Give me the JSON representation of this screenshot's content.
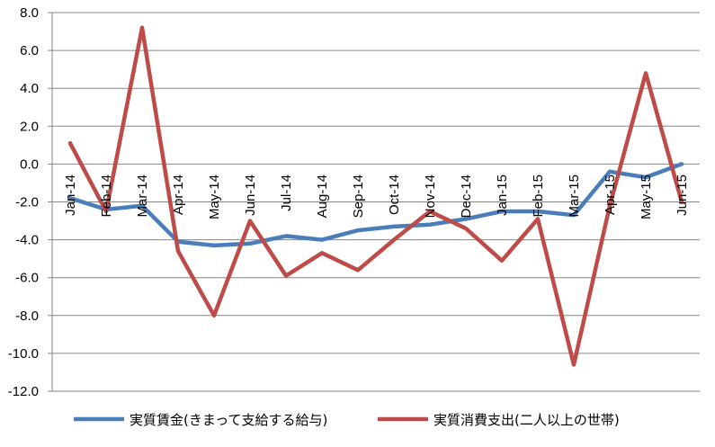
{
  "chart_data": {
    "type": "line",
    "title": "",
    "xlabel": "",
    "ylabel": "",
    "ylim": [
      -12,
      8
    ],
    "yticks": [
      8.0,
      6.0,
      4.0,
      2.0,
      0.0,
      -2.0,
      -4.0,
      -6.0,
      -8.0,
      -10.0,
      -12.0
    ],
    "ytick_labels": [
      "8.0",
      "6.0",
      "4.0",
      "2.0",
      "0.0",
      "-2.0",
      "-4.0",
      "-6.0",
      "-8.0",
      "-10.0",
      "-12.0"
    ],
    "grid": "horizontal",
    "legend_position": "bottom",
    "categories": [
      "Jan-14",
      "Feb-14",
      "Mar-14",
      "Apr-14",
      "May-14",
      "Jun-14",
      "Jul-14",
      "Aug-14",
      "Sep-14",
      "Oct-14",
      "Nov-14",
      "Dec-14",
      "Jan-15",
      "Feb-15",
      "Mar-15",
      "Apr-15",
      "May-15",
      "Jun-15"
    ],
    "series": [
      {
        "name": "実質賃金(きまって支給する給与)",
        "color": "#4a7ebb",
        "values": [
          -1.8,
          -2.4,
          -2.2,
          -4.1,
          -4.3,
          -4.2,
          -3.8,
          -4.0,
          -3.5,
          -3.3,
          -3.2,
          -2.9,
          -2.5,
          -2.5,
          -2.7,
          -0.4,
          -0.7,
          0.0
        ]
      },
      {
        "name": "実質消費支出(二人以上の世帯)",
        "color": "#be4b48",
        "values": [
          1.1,
          -2.5,
          7.2,
          -4.6,
          -8.0,
          -3.0,
          -5.9,
          -4.7,
          -5.6,
          -4.0,
          -2.5,
          -3.4,
          -5.1,
          -2.9,
          -10.6,
          -2.2,
          4.8,
          -2.0
        ]
      }
    ]
  }
}
